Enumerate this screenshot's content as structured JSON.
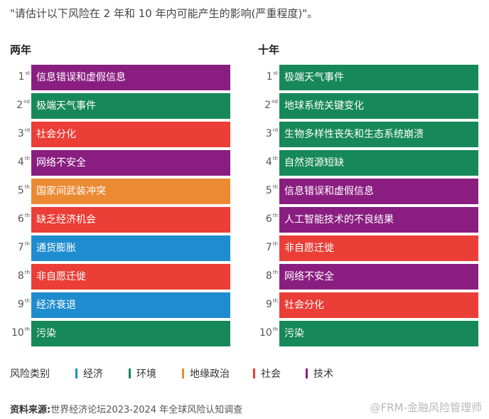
{
  "question": "\"请估计以下风险在 2 年和 10 年内可能产生的影响(严重程度)\"。",
  "colors": {
    "economic": "#1f8ccf",
    "environmental": "#17885a",
    "geopolitical": "#ec8a33",
    "societal": "#ea3e36",
    "technological": "#8a1e80"
  },
  "legend": {
    "title": "风险类别",
    "items": [
      {
        "label": "经济",
        "category": "economic"
      },
      {
        "label": "环境",
        "category": "environmental"
      },
      {
        "label": "地缘政治",
        "category": "geopolitical"
      },
      {
        "label": "社会",
        "category": "societal"
      },
      {
        "label": "技术",
        "category": "technological"
      }
    ]
  },
  "source": {
    "label": "资料来源:",
    "text": "世界经济论坛2023-2024 年全球风险认知调查"
  },
  "watermark": "@FRM-金融风险管理师",
  "chart_data": {
    "type": "table",
    "columns": [
      {
        "title": "两年",
        "rows": [
          {
            "rank": "1",
            "suffix": "st",
            "label": "信息错误和虚假信息",
            "category": "technological"
          },
          {
            "rank": "2",
            "suffix": "nd",
            "label": "极端天气事件",
            "category": "environmental"
          },
          {
            "rank": "3",
            "suffix": "rd",
            "label": "社会分化",
            "category": "societal"
          },
          {
            "rank": "4",
            "suffix": "th",
            "label": "网络不安全",
            "category": "technological"
          },
          {
            "rank": "5",
            "suffix": "th",
            "label": "国家间武装冲突",
            "category": "geopolitical"
          },
          {
            "rank": "6",
            "suffix": "th",
            "label": "缺乏经济机会",
            "category": "societal"
          },
          {
            "rank": "7",
            "suffix": "th",
            "label": "通货膨胀",
            "category": "economic"
          },
          {
            "rank": "8",
            "suffix": "th",
            "label": "非自愿迁徙",
            "category": "societal"
          },
          {
            "rank": "9",
            "suffix": "th",
            "label": "经济衰退",
            "category": "economic"
          },
          {
            "rank": "10",
            "suffix": "th",
            "label": "污染",
            "category": "environmental"
          }
        ]
      },
      {
        "title": "十年",
        "rows": [
          {
            "rank": "1",
            "suffix": "st",
            "label": "极端天气事件",
            "category": "environmental"
          },
          {
            "rank": "2",
            "suffix": "nd",
            "label": "地球系统关键变化",
            "category": "environmental"
          },
          {
            "rank": "3",
            "suffix": "rd",
            "label": "生物多样性丧失和生态系统崩溃",
            "category": "environmental"
          },
          {
            "rank": "4",
            "suffix": "th",
            "label": "自然资源短缺",
            "category": "environmental"
          },
          {
            "rank": "5",
            "suffix": "th",
            "label": "信息错误和虚假信息",
            "category": "technological"
          },
          {
            "rank": "6",
            "suffix": "th",
            "label": "人工智能技术的不良结果",
            "category": "technological"
          },
          {
            "rank": "7",
            "suffix": "th",
            "label": "非自愿迁徙",
            "category": "societal"
          },
          {
            "rank": "8",
            "suffix": "th",
            "label": "网络不安全",
            "category": "technological"
          },
          {
            "rank": "9",
            "suffix": "th",
            "label": "社会分化",
            "category": "societal"
          },
          {
            "rank": "10",
            "suffix": "th",
            "label": "污染",
            "category": "environmental"
          }
        ]
      }
    ]
  }
}
